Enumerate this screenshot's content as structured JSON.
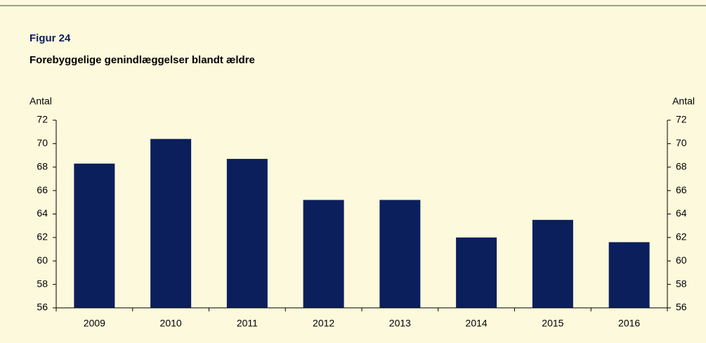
{
  "chart_data": {
    "type": "bar",
    "title": "Figur 24",
    "subtitle": "Forebyggelige genindlæggelser blandt ældre",
    "y_label": "Antal",
    "y2_label": "Antal",
    "categories": [
      "2009",
      "2010",
      "2011",
      "2012",
      "2013",
      "2014",
      "2015",
      "2016"
    ],
    "values": [
      68.3,
      70.4,
      68.7,
      65.2,
      65.2,
      62.0,
      63.5,
      61.6
    ],
    "color": "#0a1f5c",
    "ylim": [
      56,
      72
    ],
    "yticks": [
      56,
      58,
      60,
      62,
      64,
      66,
      68,
      70,
      72
    ],
    "y2lim": [
      56,
      72
    ],
    "y2ticks": [
      56,
      58,
      60,
      62,
      64,
      66,
      68,
      70,
      72
    ],
    "grid": false
  }
}
